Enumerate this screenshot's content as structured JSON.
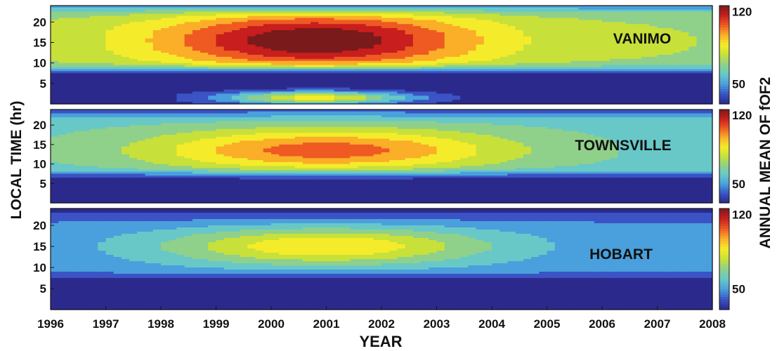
{
  "chart_data": {
    "type": "heatmap",
    "x_label": "YEAR",
    "y_label": "LOCAL TIME (hr)",
    "colorbar_label": "ANNUAL MEAN OF fOF2",
    "x_ticks": [
      1996,
      1997,
      1998,
      1999,
      2000,
      2001,
      2002,
      2003,
      2004,
      2005,
      2006,
      2007,
      2008
    ],
    "y_ticks": [
      5,
      10,
      15,
      20
    ],
    "xlim": [
      1996,
      2008
    ],
    "ylim": [
      0,
      24
    ],
    "colorbar_ticks": [
      50,
      120
    ],
    "colorbar_range": [
      30,
      125
    ],
    "colormap": [
      "#2b2a8c",
      "#3b53c4",
      "#4aa0dc",
      "#68c8c8",
      "#8fd08a",
      "#c8e03a",
      "#f4ec2a",
      "#fbae28",
      "#ee5a22",
      "#c81e1e",
      "#7a1a1a"
    ],
    "panels": [
      {
        "name": "VANIMO",
        "peak_center": {
          "year": 2000.8,
          "hour": 15.5,
          "value": 125
        },
        "day_background": 73,
        "night_background": 32,
        "morning_rise_hour": 8.5,
        "evening_fall_hour": 23.5,
        "year_spread": 2.9,
        "hour_spread": 7.0,
        "secondary_peak": {
          "year": 2000.8,
          "hour": 1.5,
          "value": 85
        }
      },
      {
        "name": "TOWNSVILLE",
        "peak_center": {
          "year": 2001.0,
          "hour": 13.5,
          "value": 104
        },
        "day_background": 62,
        "night_background": 35,
        "morning_rise_hour": 7.5,
        "evening_fall_hour": 23.0,
        "year_spread": 3.2,
        "hour_spread": 5.5,
        "secondary_peak": null
      },
      {
        "name": "HOBART",
        "peak_center": {
          "year": 2001.0,
          "hour": 15.0,
          "value": 90
        },
        "day_background": 50,
        "night_background": 34,
        "morning_rise_hour": 8.0,
        "evening_fall_hour": 22.0,
        "year_spread": 3.0,
        "hour_spread": 4.5,
        "secondary_peak": null
      }
    ]
  }
}
